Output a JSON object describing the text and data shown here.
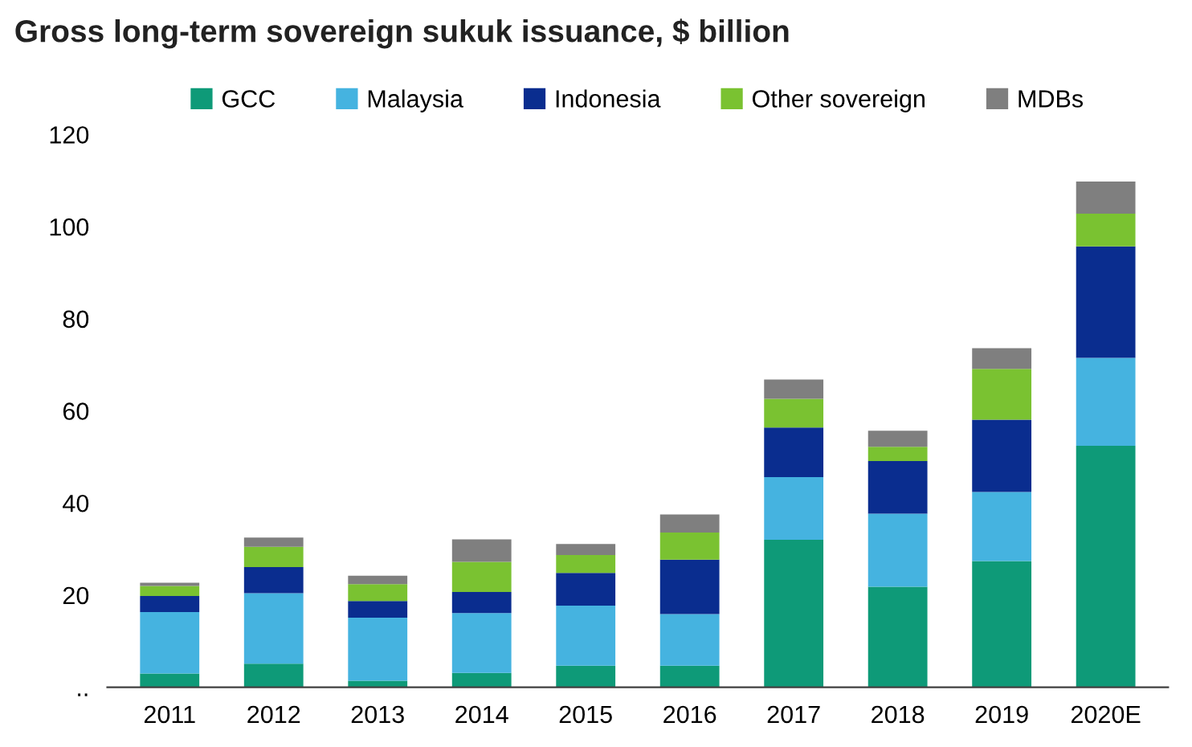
{
  "chart_data": {
    "type": "bar",
    "stacked": true,
    "title": "Gross long-term sovereign sukuk issuance, $ billion",
    "categories": [
      "2011",
      "2012",
      "2013",
      "2014",
      "2015",
      "2016",
      "2017",
      "2018",
      "2019",
      "2020E"
    ],
    "series": [
      {
        "name": "GCC",
        "color": "#0e9a78",
        "values": [
          3.0,
          5.1,
          1.4,
          3.1,
          4.7,
          4.7,
          32.0,
          21.8,
          27.4,
          52.4
        ]
      },
      {
        "name": "Malaysia",
        "color": "#45b3e0",
        "values": [
          13.3,
          15.3,
          13.7,
          13.0,
          13.0,
          11.2,
          13.6,
          15.9,
          15.0,
          19.1
        ]
      },
      {
        "name": "Indonesia",
        "color": "#0a2d8f",
        "values": [
          3.5,
          5.7,
          3.6,
          4.6,
          7.1,
          11.8,
          10.8,
          11.4,
          15.7,
          24.2
        ]
      },
      {
        "name": "Other sovereign",
        "color": "#7ac231",
        "values": [
          2.2,
          4.4,
          3.7,
          6.5,
          3.9,
          5.9,
          6.2,
          3.1,
          11.0,
          7.1
        ]
      },
      {
        "name": "MDBs",
        "color": "#7f7f7f",
        "values": [
          0.7,
          2.0,
          1.8,
          4.9,
          2.4,
          3.9,
          4.2,
          3.5,
          4.5,
          7.0
        ]
      }
    ],
    "ylim": [
      0,
      120
    ],
    "yticks": [
      {
        "value": 0,
        "label": ".."
      },
      20,
      40,
      60,
      80,
      100,
      120
    ],
    "grid": false,
    "legend": "top"
  }
}
